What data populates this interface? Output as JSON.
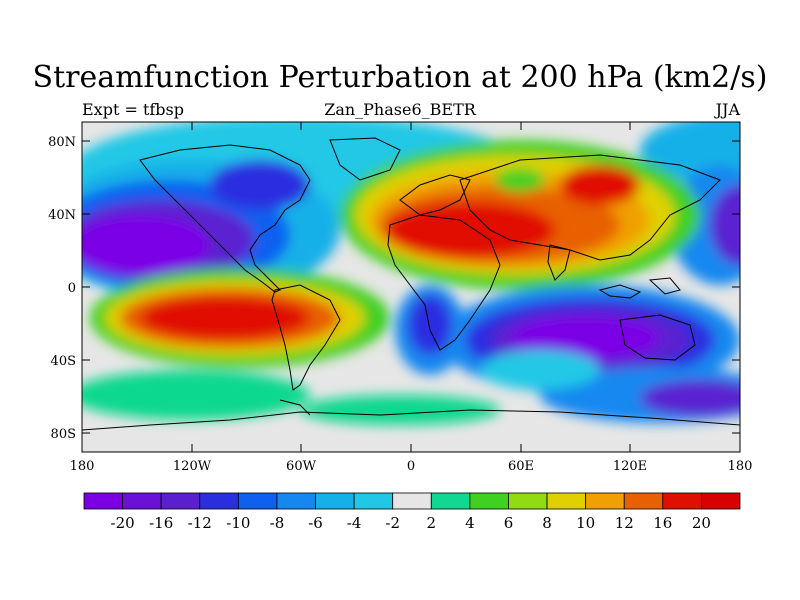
{
  "title": "Streamfunction Perturbation at 200 hPa (km2/s)",
  "left_string": "Expt = tfbsp",
  "center_string": "Zan_Phase6_BETR",
  "right_string": "JJA",
  "lat_ticks": [
    "80N",
    "40N",
    "0",
    "40S",
    "80S"
  ],
  "lon_ticks": [
    "180",
    "120W",
    "60W",
    "0",
    "60E",
    "120E",
    "180"
  ],
  "colorbar": {
    "labels": [
      "-20",
      "-16",
      "-12",
      "-10",
      "-8",
      "-6",
      "-4",
      "-2",
      "2",
      "4",
      "6",
      "8",
      "10",
      "12",
      "16",
      "20"
    ],
    "colors": [
      "#7c00e6",
      "#6a10d8",
      "#5a20d0",
      "#2b2ee0",
      "#1060f0",
      "#1488f0",
      "#14b0e8",
      "#20c8e6",
      "#e6e6e6",
      "#10d890",
      "#40d020",
      "#90dc10",
      "#e0d000",
      "#f0a000",
      "#e86000",
      "#e01000",
      "#d80000"
    ]
  }
}
